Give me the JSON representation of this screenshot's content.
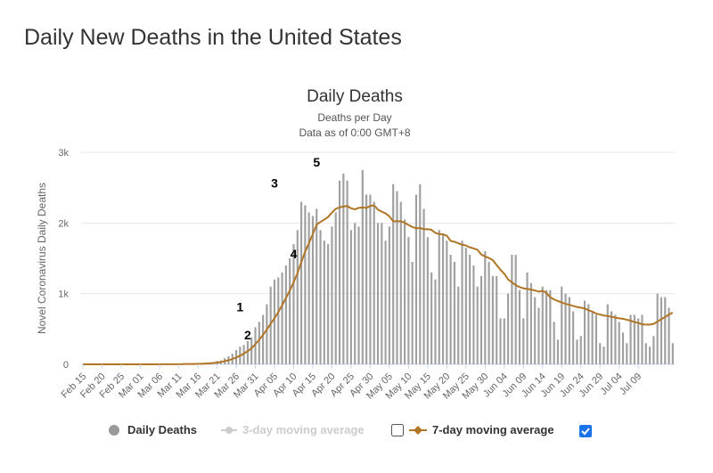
{
  "page": {
    "title": "Daily New Deaths in the United States"
  },
  "chart_data": {
    "type": "bar",
    "title": "Daily Deaths",
    "subtitle_lines": [
      "Deaths per Day",
      "Data as of 0:00 GMT+8"
    ],
    "xlabel": "",
    "ylabel": "Novel Coronavirus Daily Deaths",
    "ylim": [
      0,
      3000
    ],
    "y_ticks": [
      0,
      1000,
      2000,
      3000
    ],
    "y_tick_labels": [
      "0",
      "1k",
      "2k",
      "3k"
    ],
    "start_date": "2020-02-15",
    "x_tick_labels": [
      "Feb 15",
      "Feb 20",
      "Feb 25",
      "Mar 01",
      "Mar 06",
      "Mar 11",
      "Mar 16",
      "Mar 21",
      "Mar 26",
      "Mar 31",
      "Apr 05",
      "Apr 10",
      "Apr 15",
      "Apr 20",
      "Apr 25",
      "Apr 30",
      "May 05",
      "May 10",
      "May 15",
      "May 20",
      "May 25",
      "May 30",
      "Jun 04",
      "Jun 09",
      "Jun 14",
      "Jun 19",
      "Jun 24",
      "Jun 29",
      "Jul 04",
      "Jul 09"
    ],
    "grid": true,
    "legend_position": "bottom",
    "colors": {
      "bars": "#a0a0a0",
      "moving_average": "#b07525",
      "legend_inactive": "#cccccc",
      "checkbox_checked": "#1a73e8"
    },
    "series": [
      {
        "name": "Daily Deaths",
        "values": [
          0,
          0,
          0,
          0,
          0,
          0,
          0,
          0,
          0,
          0,
          0,
          0,
          0,
          0,
          0,
          1,
          0,
          1,
          0,
          1,
          0,
          1,
          2,
          3,
          2,
          4,
          3,
          6,
          5,
          7,
          10,
          12,
          16,
          24,
          30,
          46,
          55,
          85,
          115,
          150,
          200,
          250,
          275,
          330,
          380,
          525,
          600,
          700,
          850,
          1100,
          1200,
          1230,
          1300,
          1400,
          1500,
          1700,
          1900,
          2300,
          2250,
          2150,
          2100,
          2200,
          1900,
          1750,
          1700,
          1950,
          2150,
          2600,
          2700,
          2600,
          1900,
          2000,
          1950,
          2750,
          2400,
          2400,
          2300,
          2000,
          2000,
          1750,
          1950,
          2550,
          2450,
          2300,
          2050,
          1800,
          1450,
          2400,
          2550,
          2200,
          1800,
          1300,
          1200,
          1900,
          1850,
          1750,
          1550,
          1450,
          1100,
          1750,
          1650,
          1550,
          1400,
          1100,
          1250,
          1600,
          1450,
          1250,
          1250,
          650,
          650,
          1000,
          1550,
          1550,
          1050,
          650,
          1300,
          1150,
          950,
          800,
          1100,
          1050,
          1050,
          600,
          350,
          1100,
          1000,
          950,
          750,
          350,
          400,
          900,
          850,
          750,
          700,
          300,
          250,
          850,
          750,
          700,
          600,
          450,
          300,
          700,
          700,
          650,
          700,
          300,
          250,
          400,
          1000,
          950,
          950,
          800,
          300
        ]
      },
      {
        "name": "3-day moving average",
        "values": []
      },
      {
        "name": "7-day moving average",
        "values": [
          0,
          0,
          0,
          0,
          0,
          0,
          0,
          0,
          0,
          0,
          0,
          0,
          0,
          0,
          0,
          0,
          0,
          0,
          0,
          0,
          0,
          1,
          1,
          1,
          2,
          2,
          3,
          4,
          4,
          5,
          6,
          8,
          11,
          14,
          19,
          25,
          32,
          45,
          58,
          75,
          96,
          122,
          152,
          186,
          226,
          285,
          348,
          415,
          492,
          575,
          652,
          741,
          837,
          940,
          1046,
          1162,
          1291,
          1445,
          1592,
          1714,
          1844,
          1976,
          2016,
          2047,
          2085,
          2147,
          2201,
          2221,
          2233,
          2240,
          2208,
          2192,
          2214,
          2220,
          2213,
          2241,
          2250,
          2190,
          2160,
          2136,
          2095,
          2024,
          2024,
          2024,
          2004,
          1972,
          1943,
          1924,
          1931,
          1910,
          1913,
          1903,
          1860,
          1843,
          1840,
          1819,
          1747,
          1734,
          1713,
          1693,
          1681,
          1656,
          1640,
          1622,
          1554,
          1527,
          1504,
          1475,
          1405,
          1338,
          1281,
          1201,
          1161,
          1119,
          1094,
          1075,
          1068,
          1057,
          1045,
          1028,
          1040,
          1011,
          948,
          918,
          895,
          876,
          855,
          842,
          826,
          811,
          802,
          790,
          765,
          746,
          718,
          705,
          690,
          683,
          673,
          661,
          651,
          645,
          630,
          618,
          597,
          587,
          567,
          563,
          562,
          572,
          604,
          639,
          670,
          705,
          730
        ]
      }
    ],
    "annotations": [
      {
        "label": "1",
        "date": "2020-03-27",
        "value": 750
      },
      {
        "label": "2",
        "date": "2020-03-29",
        "value": 350
      },
      {
        "label": "3",
        "date": "2020-04-05",
        "value": 2500
      },
      {
        "label": "4",
        "date": "2020-04-10",
        "value": 1500
      },
      {
        "label": "5",
        "date": "2020-04-16",
        "value": 2800
      }
    ],
    "legend": [
      {
        "label": "Daily Deaths",
        "icon": "circle",
        "active": true
      },
      {
        "label": "3-day moving average",
        "icon": "line-dot",
        "active": false,
        "checkbox": false
      },
      {
        "label": "7-day moving average",
        "icon": "line-diamond",
        "active": true,
        "checkbox": true
      }
    ]
  }
}
